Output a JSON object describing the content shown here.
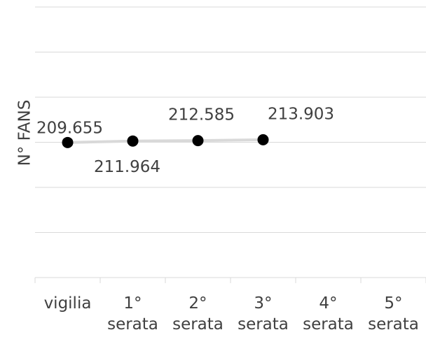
{
  "chart_data": {
    "type": "line",
    "y_label": "N° FANS",
    "categories": [
      "vigilia",
      "1° serata",
      "2° serata",
      "3° serata",
      "4° serata",
      "5° serata"
    ],
    "series": [
      {
        "name": "fans",
        "color": "#d9d9d9",
        "marker_color": "#000000",
        "values": [
          209655,
          211964,
          212585,
          213903,
          null,
          null
        ],
        "value_labels": [
          "209.655",
          "211.964",
          "212.585",
          "213.903",
          null,
          null
        ]
      }
    ],
    "ylim": [
      0,
      420000
    ],
    "yticks": [
      0,
      70000,
      140000,
      210000,
      280000,
      350000,
      420000
    ],
    "grid": true
  }
}
